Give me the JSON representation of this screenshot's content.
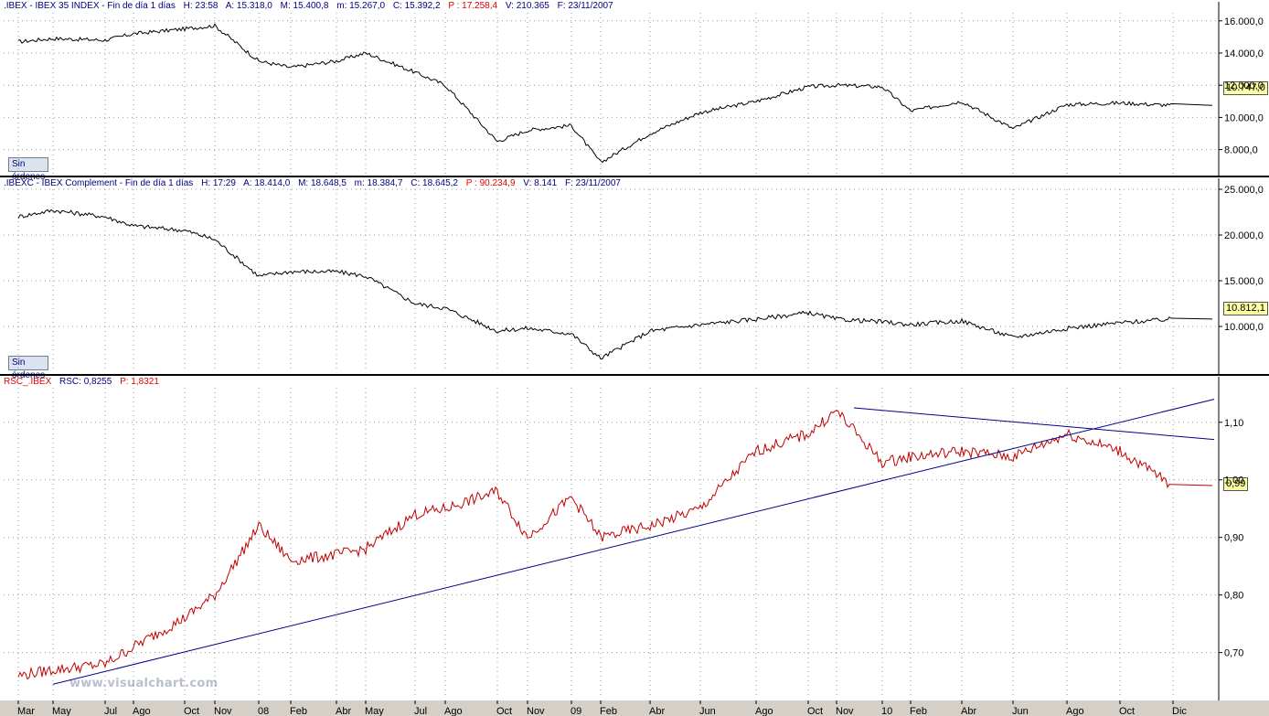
{
  "panels": [
    {
      "header": {
        "name": ".IBEX - IBEX 35 INDEX - Fin de día 1 días",
        "h": "H: 23:58",
        "a": "A: 15.318,0",
        "m": "M: 15.400,8",
        "min": "m: 15.267,0",
        "c": "C: 15.392,2",
        "p": "P : 17.258,4",
        "v": "V: 210.365",
        "f": "F: 23/11/2007"
      },
      "sin_ordenes": "Sin órdenes",
      "last_value": "10.747,0"
    },
    {
      "header": {
        "name": ".IBEXC - IBEX Complement - Fin de día 1 días",
        "h": "H: 17:29",
        "a": "A: 18.414,0",
        "m": "M: 18.648,5",
        "min": "m: 18.384,7",
        "c": "C: 18.645,2",
        "p": "P : 90.234,9",
        "v": "V: 8.141",
        "f": "F: 23/11/2007"
      },
      "sin_ordenes": "Sin órdenes",
      "last_value": "10.812,1"
    },
    {
      "header": {
        "name": "RSC_.IBEX",
        "rsc": "RSC: 0,8255",
        "p": "P: 1,8321"
      },
      "last_value": "0,99"
    }
  ],
  "watermark": "www.visualchart.com",
  "window_buttons": [
    "_",
    "□",
    "×"
  ],
  "chart_data": [
    {
      "type": "line",
      "series": [
        {
          "name": "IBEX 35 INDEX",
          "color": "#000000"
        }
      ],
      "x": [
        "Mar",
        "May",
        "Jul",
        "Ago",
        "Oct",
        "Nov",
        "08",
        "Feb",
        "Abr",
        "May",
        "Jul",
        "Ago",
        "Oct",
        "Nov",
        "09",
        "Feb",
        "Abr",
        "Jun",
        "Ago",
        "Oct",
        "Nov",
        "10",
        "Feb",
        "Abr",
        "Jun",
        "Ago",
        "Oct",
        "Dic"
      ],
      "y": [
        14700,
        14900,
        14800,
        15200,
        15500,
        15700,
        13500,
        13100,
        13500,
        14000,
        12800,
        12000,
        8500,
        9200,
        9500,
        7200,
        9000,
        10300,
        11000,
        11900,
        12000,
        11900,
        10400,
        11000,
        9300,
        10800,
        10900,
        10747
      ],
      "ylim": [
        6500,
        16500
      ],
      "yticks": [
        "8.000,0",
        "10.000,0",
        "12.000,0",
        "14.000,0",
        "16.000,0"
      ],
      "grid": true
    },
    {
      "type": "line",
      "series": [
        {
          "name": "IBEX Complement",
          "color": "#000000"
        }
      ],
      "x": [
        "Mar",
        "May",
        "Jul",
        "Ago",
        "Oct",
        "Nov",
        "08",
        "Feb",
        "Abr",
        "May",
        "Jul",
        "Ago",
        "Oct",
        "Nov",
        "09",
        "Feb",
        "Abr",
        "Jun",
        "Ago",
        "Oct",
        "Nov",
        "10",
        "Feb",
        "Abr",
        "Jun",
        "Ago",
        "Oct",
        "Dic"
      ],
      "y": [
        22000,
        22700,
        22000,
        21000,
        20500,
        19500,
        15500,
        16000,
        16000,
        15500,
        12500,
        12000,
        9500,
        9800,
        9200,
        6500,
        9500,
        10200,
        10800,
        11500,
        10800,
        10500,
        10200,
        10600,
        8800,
        9800,
        10400,
        10812
      ],
      "ylim": [
        5000,
        25000
      ],
      "yticks": [
        "10.000,0",
        "15.000,0",
        "20.000,0",
        "25.000,0"
      ],
      "grid": true
    },
    {
      "type": "line",
      "series": [
        {
          "name": "RSC_.IBEX",
          "color": "#c00000"
        },
        {
          "name": "",
          "color": "#00008c"
        },
        {
          "name": "",
          "color": "#00008c"
        }
      ],
      "x": [
        "Mar",
        "May",
        "Jul",
        "Ago",
        "Oct",
        "Nov",
        "08",
        "Feb",
        "Abr",
        "May",
        "Jul",
        "Ago",
        "Oct",
        "Nov",
        "09",
        "Feb",
        "Abr",
        "Jun",
        "Ago",
        "Oct",
        "Nov",
        "10",
        "Feb",
        "Abr",
        "Jun",
        "Ago",
        "Oct",
        "Dic"
      ],
      "y": [
        0.66,
        0.67,
        0.68,
        0.71,
        0.76,
        0.8,
        0.92,
        0.86,
        0.87,
        0.88,
        0.94,
        0.95,
        0.98,
        0.9,
        0.97,
        0.9,
        0.92,
        0.95,
        1.05,
        1.08,
        1.12,
        1.03,
        1.04,
        1.05,
        1.04,
        1.08,
        1.05,
        0.99
      ],
      "trendlines": [
        {
          "from": [
            "Mar",
            0.645
          ],
          "to": [
            "Dic",
            1.14
          ]
        },
        {
          "from": [
            "Nov",
            1.125
          ],
          "to": [
            "Dic",
            1.07
          ]
        }
      ],
      "ylim": [
        0.62,
        1.16
      ],
      "yticks": [
        "0,70",
        "0,80",
        "0,90",
        "1,00",
        "1,10"
      ],
      "grid": true
    }
  ],
  "x_axis": {
    "labels": [
      "Mar",
      "May",
      "Jul",
      "Ago",
      "Oct",
      "Nov",
      "08",
      "Feb",
      "Abr",
      "May",
      "Jul",
      "Ago",
      "Oct",
      "Nov",
      "09",
      "Feb",
      "Abr",
      "Jun",
      "Ago",
      "Oct",
      "Nov",
      "10",
      "Feb",
      "Abr",
      "Jun",
      "Ago",
      "Oct",
      "Dic"
    ]
  }
}
